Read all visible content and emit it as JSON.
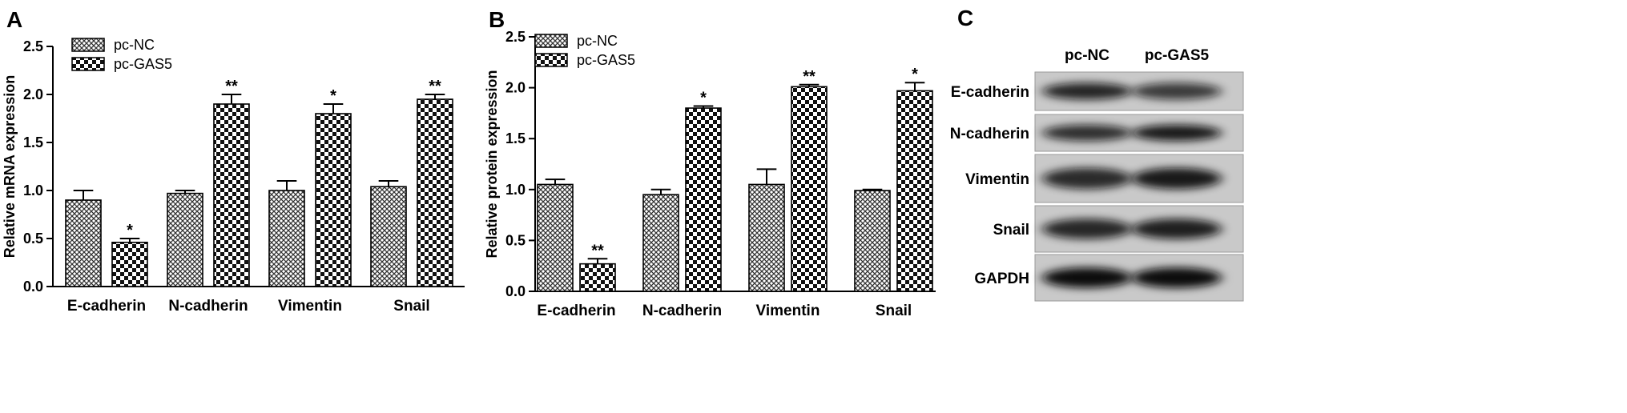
{
  "chart_data": [
    {
      "type": "bar",
      "panel_label": "A",
      "title": "",
      "xlabel": "",
      "ylabel": "Relative mRNA expression",
      "ylim": [
        0,
        2.5
      ],
      "yticks": [
        "0.0",
        "0.5",
        "1.0",
        "1.5",
        "2.0",
        "2.5"
      ],
      "categories": [
        "E-cadherin",
        "N-cadherin",
        "Vimentin",
        "Snail"
      ],
      "series": [
        {
          "name": "pc-NC",
          "values": [
            0.9,
            0.97,
            1.0,
            1.04
          ],
          "errors": [
            0.1,
            0.03,
            0.1,
            0.06
          ]
        },
        {
          "name": "pc-GAS5",
          "values": [
            0.46,
            1.9,
            1.8,
            1.95
          ],
          "errors": [
            0.04,
            0.1,
            0.1,
            0.05
          ]
        }
      ],
      "annotations": [
        "*",
        "**",
        "*",
        "**"
      ],
      "legend": "top-left"
    },
    {
      "type": "bar",
      "panel_label": "B",
      "title": "",
      "xlabel": "",
      "ylabel": "Relative protein expression",
      "ylim": [
        0,
        2.5
      ],
      "yticks": [
        "0.0",
        "0.5",
        "1.0",
        "1.5",
        "2.0",
        "2.5"
      ],
      "categories": [
        "E-cadherin",
        "N-cadherin",
        "Vimentin",
        "Snail"
      ],
      "series": [
        {
          "name": "pc-NC",
          "values": [
            1.05,
            0.95,
            1.05,
            0.99
          ],
          "errors": [
            0.05,
            0.05,
            0.15,
            0.01
          ]
        },
        {
          "name": "pc-GAS5",
          "values": [
            0.27,
            1.8,
            2.01,
            1.97
          ],
          "errors": [
            0.05,
            0.02,
            0.02,
            0.08
          ]
        }
      ],
      "annotations": [
        "**",
        "*",
        "**",
        "*"
      ],
      "legend": "top-left"
    }
  ],
  "blot": {
    "panel_label": "C",
    "columns": [
      "pc-NC",
      "pc-GAS5"
    ],
    "rows": [
      {
        "label": "E-cadherin",
        "intensity": [
          0.8,
          0.62
        ]
      },
      {
        "label": "N-cadherin",
        "intensity": [
          0.72,
          0.9
        ]
      },
      {
        "label": "Vimentin",
        "intensity": [
          0.75,
          0.9
        ]
      },
      {
        "label": "Snail",
        "intensity": [
          0.78,
          0.85
        ]
      },
      {
        "label": "GAPDH",
        "intensity": [
          1.0,
          1.0
        ]
      }
    ]
  }
}
